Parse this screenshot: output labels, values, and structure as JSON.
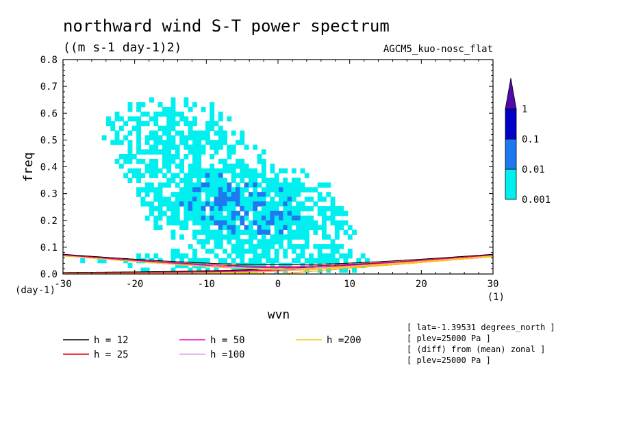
{
  "chart_data": {
    "type": "heatmap",
    "title": "northward wind S-T power spectrum",
    "units": "((m s-1 day-1)2)",
    "model": "AGCM5_kuo-nosc_flat",
    "xlabel": "wvn",
    "ylabel": "freq",
    "xunit": "(1)",
    "yunit": "(day-1)",
    "xlim": [
      -30,
      30
    ],
    "ylim": [
      0,
      0.8
    ],
    "xticks": [
      -30,
      -20,
      -10,
      0,
      10,
      20,
      30
    ],
    "yticks": [
      0.0,
      0.1,
      0.2,
      0.3,
      0.4,
      0.5,
      0.6,
      0.7,
      0.8
    ],
    "xtick_labels": [
      "-30",
      "-20",
      "-10",
      "0",
      "10",
      "20",
      "30"
    ],
    "ytick_labels": [
      "0.0",
      "0.1",
      "0.2",
      "0.3",
      "0.4",
      "0.5",
      "0.6",
      "0.7",
      "0.8"
    ],
    "colorbar": {
      "levels": [
        "0.001",
        "0.01",
        "0.1",
        "1"
      ],
      "colors": [
        "#00f0f0",
        "#1e78f0",
        "#0000c8",
        "#500aaa"
      ]
    },
    "dispersion_curves": [
      {
        "label": "h = 12",
        "h": 12,
        "color": "#000000"
      },
      {
        "label": "h = 25",
        "h": 25,
        "color": "#e60000"
      },
      {
        "label": "h = 50",
        "h": 50,
        "color": "#e600c8"
      },
      {
        "label": "h =100",
        "h": 100,
        "color": "#e6a0e6"
      },
      {
        "label": "h =200",
        "h": 200,
        "color": "#ffc800"
      }
    ],
    "annotations": [
      "[ lat=-1.39531 degrees_north ]",
      "[ plev=25000 Pa ]",
      "[ (diff) from (mean) zonal ]",
      "[ plev=25000 Pa ]"
    ]
  }
}
